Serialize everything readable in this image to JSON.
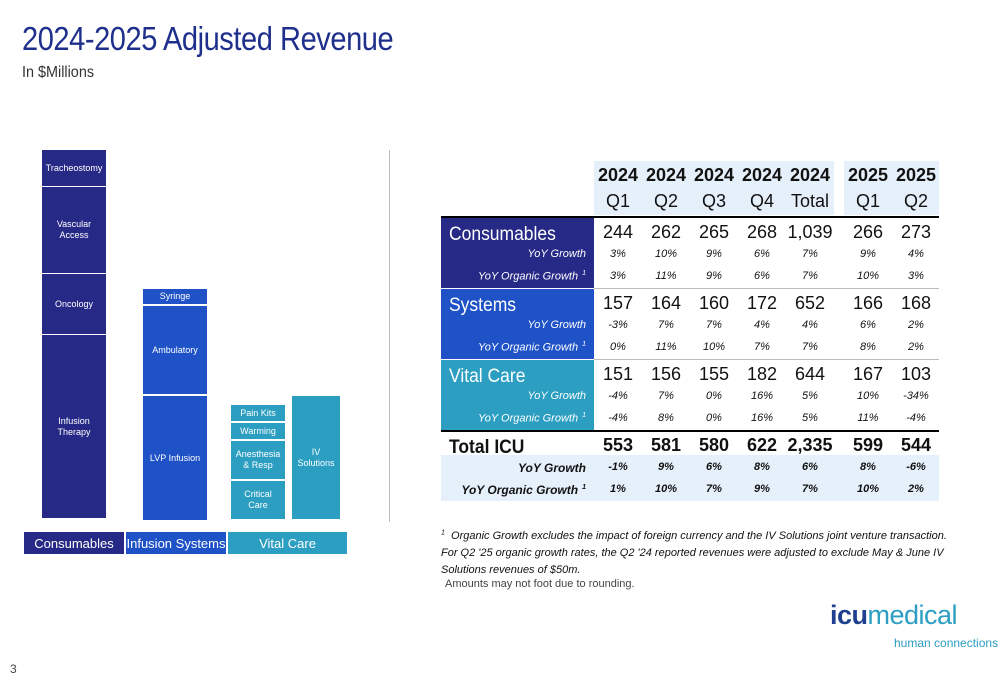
{
  "title": "2024-2025 Adjusted Revenue",
  "subtitle": "In $Millions",
  "diagram": {
    "consumables": [
      "Tracheostomy",
      "Vascular Access",
      "Oncology",
      "Infusion Therapy"
    ],
    "infusion_systems": [
      "Syringe",
      "Ambulatory",
      "LVP Infusion"
    ],
    "vital_care_left": [
      "Pain Kits",
      "Warming",
      "Anesthesia & Resp",
      "Critical Care"
    ],
    "vital_care_right": "IV Solutions",
    "categories": [
      "Consumables",
      "Infusion Systems",
      "Vital Care"
    ]
  },
  "table": {
    "header_years": [
      "2024",
      "2024",
      "2024",
      "2024",
      "2024",
      "2025",
      "2025"
    ],
    "header_periods": [
      "Q1",
      "Q2",
      "Q3",
      "Q4",
      "Total",
      "Q1",
      "Q2"
    ],
    "sections": [
      {
        "name": "Consumables",
        "growth_label": "YoY Growth",
        "organic_label": "YoY Organic Growth",
        "values": [
          "244",
          "262",
          "265",
          "268",
          "1,039",
          "266",
          "273"
        ],
        "growth": [
          "3%",
          "10%",
          "9%",
          "6%",
          "7%",
          "9%",
          "4%"
        ],
        "organic": [
          "3%",
          "11%",
          "9%",
          "6%",
          "7%",
          "10%",
          "3%"
        ]
      },
      {
        "name": "Systems",
        "growth_label": "YoY Growth",
        "organic_label": "YoY Organic Growth",
        "values": [
          "157",
          "164",
          "160",
          "172",
          "652",
          "166",
          "168"
        ],
        "growth": [
          "-3%",
          "7%",
          "7%",
          "4%",
          "4%",
          "6%",
          "2%"
        ],
        "organic": [
          "0%",
          "11%",
          "10%",
          "7%",
          "7%",
          "8%",
          "2%"
        ]
      },
      {
        "name": "Vital Care",
        "growth_label": "YoY Growth",
        "organic_label": "YoY Organic Growth",
        "values": [
          "151",
          "156",
          "155",
          "182",
          "644",
          "167",
          "103"
        ],
        "growth": [
          "-4%",
          "7%",
          "0%",
          "16%",
          "5%",
          "10%",
          "-34%"
        ],
        "organic": [
          "-4%",
          "8%",
          "0%",
          "16%",
          "5%",
          "11%",
          "-4%"
        ]
      },
      {
        "name": "Total ICU",
        "growth_label": "YoY Growth",
        "organic_label": "YoY Organic Growth",
        "values": [
          "553",
          "581",
          "580",
          "622",
          "2,335",
          "599",
          "544"
        ],
        "growth": [
          "-1%",
          "9%",
          "6%",
          "8%",
          "6%",
          "8%",
          "-6%"
        ],
        "organic": [
          "1%",
          "10%",
          "7%",
          "9%",
          "7%",
          "10%",
          "2%"
        ]
      }
    ],
    "footnote_marker": "1"
  },
  "footnote": "Organic Growth excludes the impact of foreign currency and the IV Solutions joint venture transaction.  For Q2 '25 organic growth rates, the Q2 '24 reported revenues were adjusted to exclude May & June IV Solutions revenues of $50m.",
  "footnote_marker": "1",
  "rounding_note": "Amounts may not foot due to rounding.",
  "logo": {
    "icu": "icu",
    "medical": "medical",
    "tagline": "human connections"
  },
  "page_number": "3",
  "colors": {
    "navy": "#262a86",
    "blue": "#1e52c6",
    "teal": "#2b9ec1",
    "title": "#1f2f8c"
  }
}
